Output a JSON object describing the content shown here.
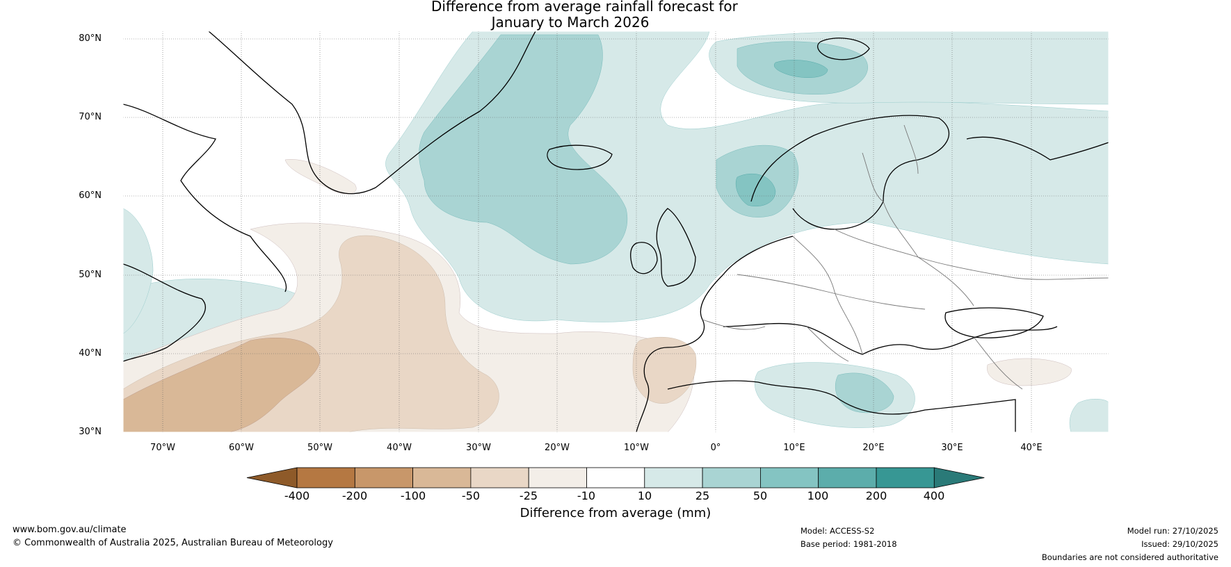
{
  "title": {
    "line1": "Difference from average rainfall forecast for",
    "line2": "January to March 2026"
  },
  "map": {
    "lat_labels": [
      "80°N",
      "70°N",
      "60°N",
      "50°N",
      "40°N",
      "30°N"
    ],
    "lon_labels": [
      "70°W",
      "60°W",
      "50°W",
      "40°W",
      "30°W",
      "20°W",
      "10°W",
      "0°",
      "10°E",
      "20°E",
      "30°E",
      "40°E"
    ]
  },
  "colorbar": {
    "ticks": [
      "-400",
      "-200",
      "-100",
      "-50",
      "-25",
      "-10",
      "10",
      "25",
      "50",
      "100",
      "200",
      "400"
    ],
    "colors": [
      "#8e5a29",
      "#b57842",
      "#c8976a",
      "#d9b897",
      "#e9d7c6",
      "#f3eee8",
      "#ffffff",
      "#d6e9e8",
      "#a9d4d3",
      "#84c4c2",
      "#5cadab",
      "#379794",
      "#2a7a78"
    ],
    "label": "Difference from average (mm)"
  },
  "footer": {
    "website": "www.bom.gov.au/climate",
    "copyright": "© Commonwealth of Australia 2025, Australian Bureau of Meteorology",
    "model": "Model: ACCESS-S2",
    "base_period": "Base period: 1981-2018",
    "model_run": "Model run: 27/10/2025",
    "issued": "Issued: 29/10/2025",
    "disclaimer": "Boundaries are not considered authoritative"
  }
}
